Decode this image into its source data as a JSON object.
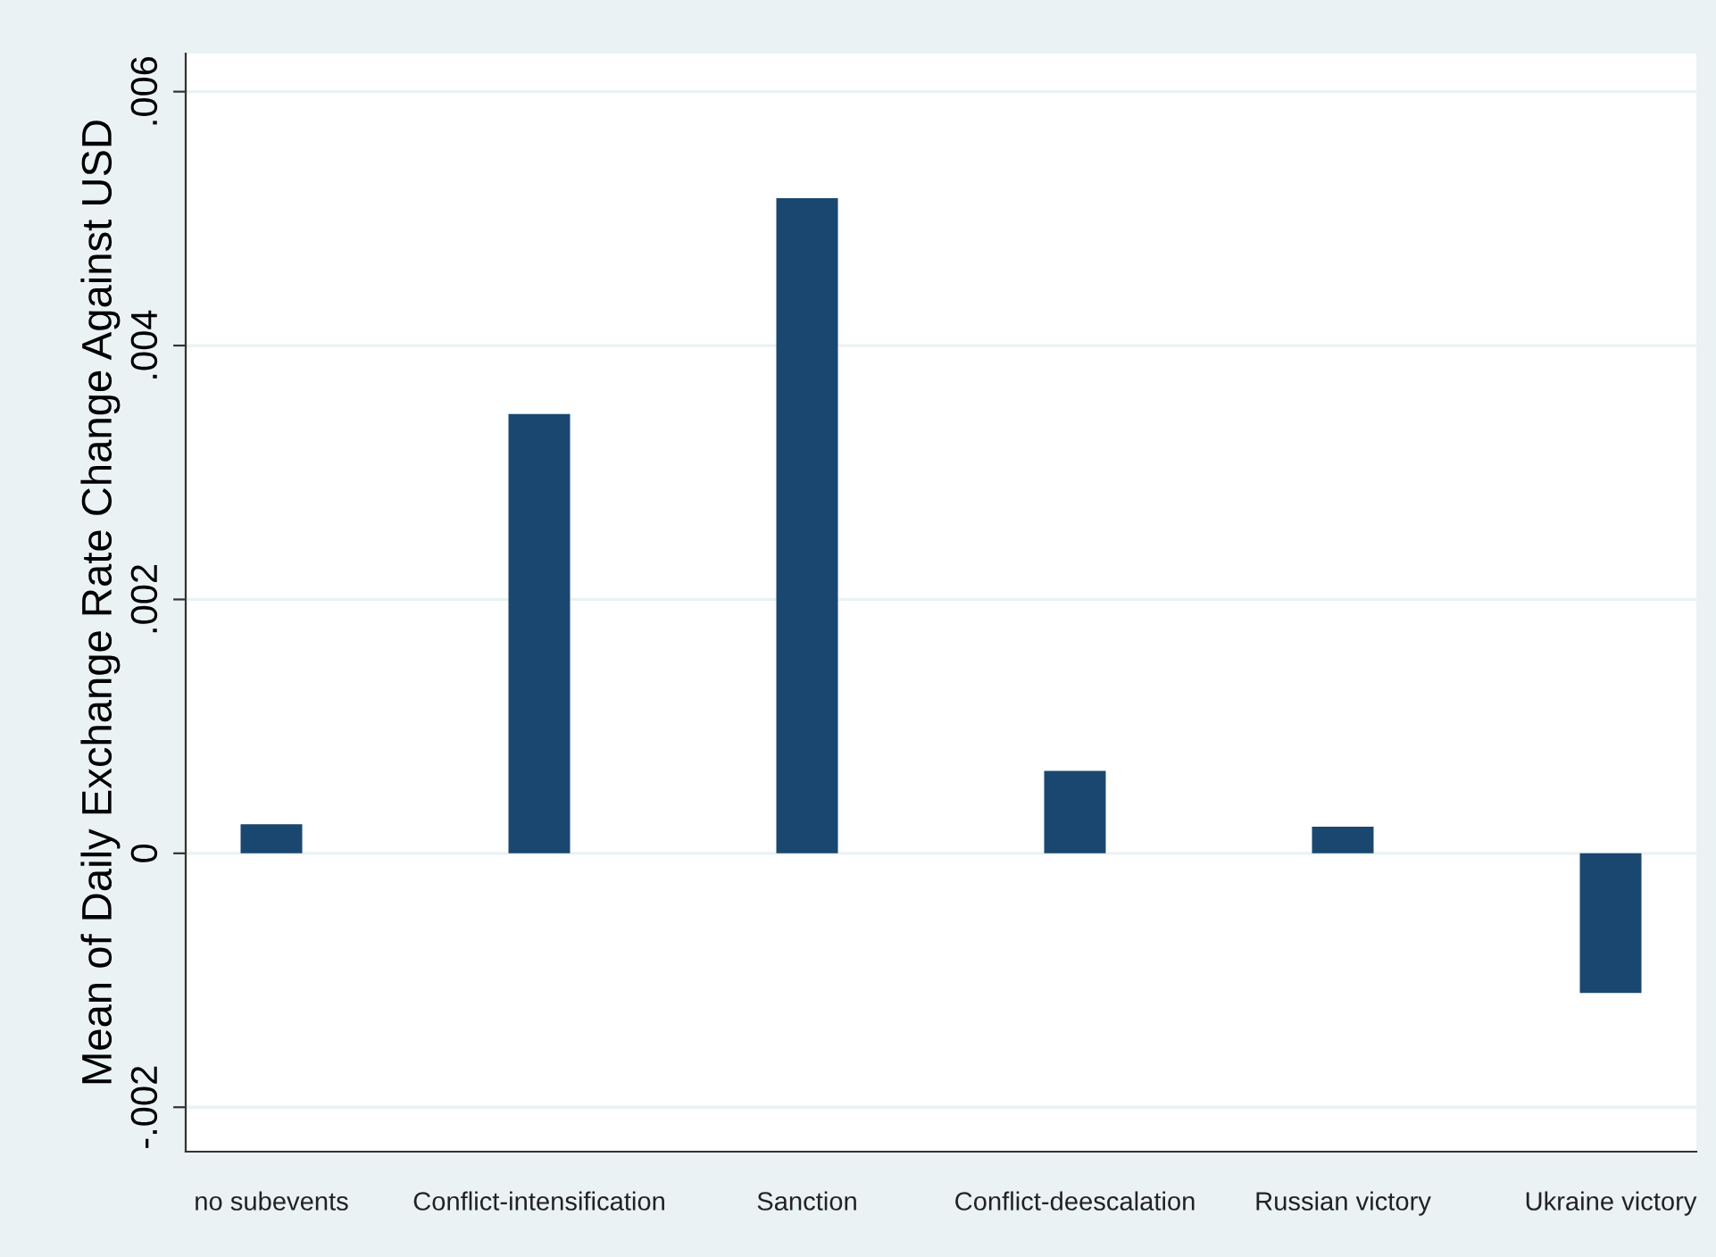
{
  "chart_data": {
    "type": "bar",
    "ylabel": "Mean of Daily Exchange Rate Change Against USD",
    "categories": [
      "no subevents",
      "Conflict-intensification",
      "Sanction",
      "Conflict-deescalation",
      "Russian victory",
      "Ukraine victory"
    ],
    "values": [
      0.00023,
      0.00346,
      0.00516,
      0.00065,
      0.00021,
      -0.0011
    ],
    "color": "#1a476f",
    "ylim": [
      -0.00235,
      0.0063
    ],
    "yticks": [
      {
        "value": -0.002,
        "label": "-.002"
      },
      0,
      {
        "value": 0.002,
        "label": ".002"
      },
      {
        "value": 0.004,
        "label": ".004"
      },
      {
        "value": 0.006,
        "label": ".006"
      }
    ],
    "grid": "y"
  }
}
